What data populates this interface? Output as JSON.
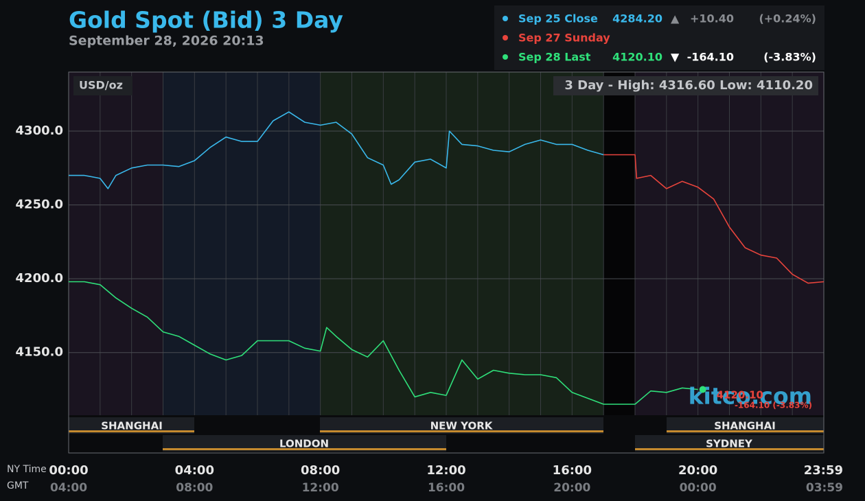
{
  "chart_data": {
    "type": "line",
    "title": "Gold Spot (Bid) 3 Day",
    "subtitle": "September 28, 2026 20:13",
    "y_label": "USD/oz",
    "stats": "3 Day - High: 4316.60  Low: 4110.20",
    "x_row_labels": [
      "NY Time",
      "GMT"
    ],
    "sessions": [
      "SHANGHAI",
      "LONDON",
      "NEW YORK",
      "SHANGHAI",
      "SYDNEY"
    ],
    "watermark": "kitco.com",
    "last_label": "4120.10",
    "last_change_label": "-164.10 (-3.83%)",
    "xlim": [
      0,
      24
    ],
    "ylim": [
      4082,
      4340
    ],
    "grid": true,
    "xticks": [
      {
        "value": 0,
        "label": "00:00"
      },
      {
        "value": 4,
        "label": "04:00"
      },
      {
        "value": 8,
        "label": "08:00"
      },
      {
        "value": 12,
        "label": "12:00"
      },
      {
        "value": 16,
        "label": "16:00"
      },
      {
        "value": 20,
        "label": "20:00"
      },
      {
        "value": 24,
        "label": "23:59"
      }
    ],
    "gmt_ticks": [
      {
        "value": 0,
        "label": "04:00"
      },
      {
        "value": 4,
        "label": "08:00"
      },
      {
        "value": 8,
        "label": "12:00"
      },
      {
        "value": 12,
        "label": "16:00"
      },
      {
        "value": 16,
        "label": "20:00"
      },
      {
        "value": 20,
        "label": "00:00"
      },
      {
        "value": 24,
        "label": "03:59"
      }
    ],
    "yticks": [
      {
        "value": 4300,
        "label": "4300.0"
      },
      {
        "value": 4250,
        "label": "4250.0"
      },
      {
        "value": 4200,
        "label": "4200.0"
      },
      {
        "value": 4150,
        "label": "4150.0"
      }
    ],
    "series": [
      {
        "name": "Sep 25 Close",
        "color": "#3ab9ec",
        "price": "4284.20",
        "arrow": "▲",
        "change": "+10.40",
        "pct": "(+0.24%)",
        "x": [
          0,
          0.5,
          1,
          1.25,
          1.5,
          2,
          2.5,
          3,
          3.5,
          4,
          4.5,
          5,
          5.5,
          6,
          6.5,
          7,
          7.5,
          8,
          8.5,
          9,
          9.5,
          10,
          10.25,
          10.5,
          11,
          11.5,
          12,
          12.1,
          12.5,
          13,
          13.5,
          14,
          14.5,
          15,
          15.5,
          16,
          16.5,
          17
        ],
        "values": [
          4270,
          4270,
          4268,
          4261,
          4270,
          4275,
          4277,
          4277,
          4276,
          4280,
          4289,
          4296,
          4293,
          4293,
          4307,
          4313,
          4306,
          4304,
          4306,
          4298,
          4282,
          4277,
          4264,
          4267,
          4279,
          4281,
          4275,
          4300,
          4291,
          4290,
          4287,
          4286,
          4291,
          4294,
          4291,
          4291,
          4287,
          4284
        ]
      },
      {
        "name": "Sep 27 Sunday",
        "color": "#e9443c",
        "x": [
          17,
          18,
          18.05,
          18.5,
          19,
          19.5,
          20,
          20.5,
          21,
          21.5,
          22,
          22.5,
          23,
          23.5,
          24
        ],
        "values": [
          4284,
          4284,
          4268,
          4270,
          4261,
          4266,
          4262,
          4254,
          4235,
          4221,
          4216,
          4214,
          4203,
          4197,
          4198
        ]
      },
      {
        "name": "Sep 28 Last",
        "color": "#2fe07a",
        "price": "4120.10",
        "arrow": "▼",
        "change": "-164.10",
        "pct": "(-3.83%)",
        "x": [
          0,
          0.5,
          1,
          1.5,
          2,
          2.5,
          3,
          3.5,
          4,
          4.5,
          5,
          5.5,
          6,
          6.5,
          7,
          7.5,
          8,
          8.2,
          8.5,
          9,
          9.5,
          10,
          10.5,
          11,
          11.5,
          12,
          12.5,
          13,
          13.5,
          14,
          14.5,
          15,
          15.5,
          16,
          16.5,
          17,
          18,
          18.5,
          19,
          19.5,
          20
        ],
        "values": [
          4198,
          4198,
          4196,
          4187,
          4180,
          4174,
          4164,
          4161,
          4155,
          4149,
          4145,
          4148,
          4158,
          4158,
          4158,
          4153,
          4151,
          4167,
          4161,
          4152,
          4147,
          4158,
          4138,
          4120,
          4123,
          4121,
          4145,
          4132,
          4138,
          4136,
          4135,
          4135,
          4133,
          4123,
          4119,
          4115,
          4115,
          4124,
          4123,
          4126,
          4125
        ]
      }
    ]
  }
}
